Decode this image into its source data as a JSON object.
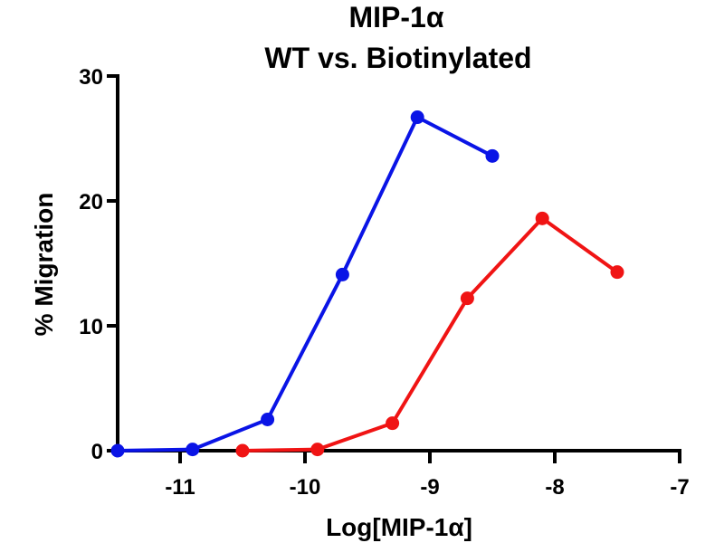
{
  "chart_data": {
    "type": "line",
    "title": "MIP-1α",
    "subtitle": "WT vs. Biotinylated",
    "xlabel": "Log[MIP-1α]",
    "ylabel": "% Migration",
    "xlim": [
      -11.5,
      -7
    ],
    "ylim": [
      0,
      30
    ],
    "xticks": [
      -11,
      -10,
      -9,
      -8,
      -7
    ],
    "xtick_labels": [
      "-11",
      "-10",
      "-9",
      "-8",
      "-7"
    ],
    "yticks": [
      0,
      10,
      20,
      30
    ],
    "ytick_labels": [
      "0",
      "10",
      "20",
      "30"
    ],
    "grid": false,
    "legend": "none",
    "series": [
      {
        "name": "WT",
        "color": "#0a14e6",
        "x": [
          -11.5,
          -10.9,
          -10.3,
          -9.7,
          -9.1,
          -8.5
        ],
        "y": [
          0,
          0.1,
          2.5,
          14.1,
          26.7,
          23.6
        ]
      },
      {
        "name": "Biotinylated",
        "color": "#f01414",
        "x": [
          -10.5,
          -9.9,
          -9.3,
          -8.7,
          -8.1,
          -7.5
        ],
        "y": [
          0,
          0.1,
          2.2,
          12.2,
          18.6,
          14.3
        ]
      }
    ]
  }
}
